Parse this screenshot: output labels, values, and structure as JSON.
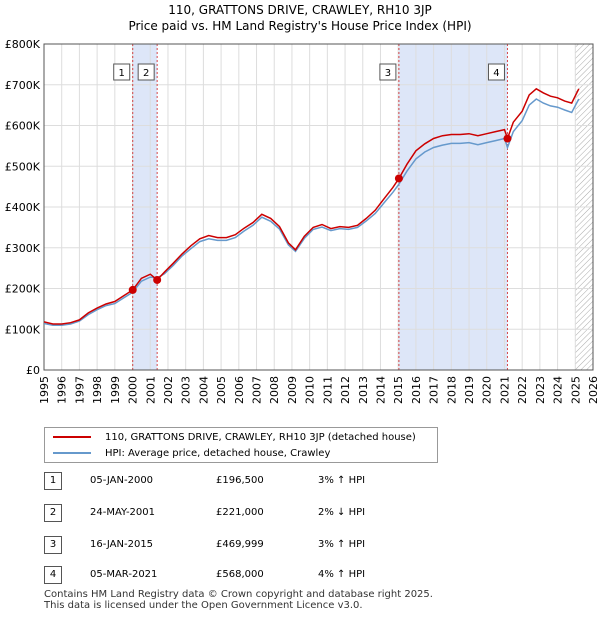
{
  "title": {
    "line1": "110, GRATTONS DRIVE, CRAWLEY, RH10 3JP",
    "line2": "Price paid vs. HM Land Registry's House Price Index (HPI)"
  },
  "colors": {
    "price_line": "#cc0000",
    "hpi_line": "#6699cc",
    "shade": "#dde6f8",
    "marker": "#cc0000"
  },
  "legend": {
    "price_label": "110, GRATTONS DRIVE, CRAWLEY, RH10 3JP (detached house)",
    "hpi_label": "HPI: Average price, detached house, Crawley"
  },
  "sales": [
    {
      "num": "1",
      "date": "05-JAN-2000",
      "price": "£196,500",
      "hpi": "3% ↑ HPI"
    },
    {
      "num": "2",
      "date": "24-MAY-2001",
      "price": "£221,000",
      "hpi": "2% ↓ HPI"
    },
    {
      "num": "3",
      "date": "16-JAN-2015",
      "price": "£469,999",
      "hpi": "3% ↑ HPI"
    },
    {
      "num": "4",
      "date": "05-MAR-2021",
      "price": "£568,000",
      "hpi": "4% ↑ HPI"
    }
  ],
  "footer": {
    "line1": "Contains HM Land Registry data © Crown copyright and database right 2025.",
    "line2": "This data is licensed under the Open Government Licence v3.0."
  },
  "chart_data": {
    "type": "line",
    "title": "Price paid vs. HM Land Registry's House Price Index (HPI)",
    "xlabel": "",
    "ylabel": "",
    "xlim": [
      1995,
      2026
    ],
    "ylim": [
      0,
      800000
    ],
    "x_ticks": [
      "1995",
      "1996",
      "1997",
      "1998",
      "1999",
      "2000",
      "2001",
      "2002",
      "2003",
      "2004",
      "2005",
      "2006",
      "2007",
      "2008",
      "2009",
      "2010",
      "2011",
      "2012",
      "2013",
      "2014",
      "2015",
      "2016",
      "2017",
      "2018",
      "2019",
      "2020",
      "2021",
      "2022",
      "2023",
      "2024",
      "2025",
      "2026"
    ],
    "y_ticks": [
      {
        "value": 0,
        "label": "£0"
      },
      {
        "value": 100000,
        "label": "£100K"
      },
      {
        "value": 200000,
        "label": "£200K"
      },
      {
        "value": 300000,
        "label": "£300K"
      },
      {
        "value": 400000,
        "label": "£400K"
      },
      {
        "value": 500000,
        "label": "£500K"
      },
      {
        "value": 600000,
        "label": "£600K"
      },
      {
        "value": 700000,
        "label": "£700K"
      },
      {
        "value": 800000,
        "label": "£800K"
      }
    ],
    "grid": true,
    "shaded_periods": [
      [
        2000.01,
        2001.39
      ],
      [
        2015.04,
        2021.17
      ]
    ],
    "hatched_from": 2025.0,
    "series": [
      {
        "name": "110, GRATTONS DRIVE, CRAWLEY, RH10 3JP (detached house)",
        "x": [
          1995.0,
          1995.5,
          1996.0,
          1996.5,
          1997.0,
          1997.5,
          1998.0,
          1998.5,
          1999.0,
          1999.5,
          2000.01,
          2000.5,
          2001.0,
          2001.39,
          2001.8,
          2002.3,
          2002.8,
          2003.3,
          2003.8,
          2004.3,
          2004.8,
          2005.3,
          2005.8,
          2006.3,
          2006.8,
          2007.3,
          2007.8,
          2008.3,
          2008.8,
          2009.2,
          2009.7,
          2010.2,
          2010.7,
          2011.2,
          2011.7,
          2012.2,
          2012.7,
          2013.2,
          2013.7,
          2014.2,
          2014.7,
          2015.04,
          2015.5,
          2016.0,
          2016.5,
          2017.0,
          2017.5,
          2018.0,
          2018.5,
          2019.0,
          2019.5,
          2020.0,
          2020.5,
          2021.0,
          2021.17,
          2021.5,
          2022.0,
          2022.4,
          2022.8,
          2023.2,
          2023.6,
          2024.0,
          2024.4,
          2024.8,
          2025.2
        ],
        "y": [
          118000,
          113000,
          113000,
          116000,
          123000,
          140000,
          152000,
          162000,
          168000,
          182000,
          196500,
          225000,
          235000,
          221000,
          240000,
          262000,
          285000,
          305000,
          322000,
          330000,
          325000,
          325000,
          332000,
          348000,
          362000,
          382000,
          372000,
          352000,
          312000,
          295000,
          328000,
          350000,
          357000,
          347000,
          352000,
          350000,
          355000,
          372000,
          392000,
          420000,
          448000,
          469999,
          505000,
          538000,
          555000,
          568000,
          575000,
          578000,
          578000,
          580000,
          575000,
          580000,
          585000,
          590000,
          568000,
          608000,
          635000,
          675000,
          690000,
          680000,
          672000,
          668000,
          660000,
          655000,
          690000
        ]
      },
      {
        "name": "HPI: Average price, detached house, Crawley",
        "x": [
          1995.0,
          1995.5,
          1996.0,
          1996.5,
          1997.0,
          1997.5,
          1998.0,
          1998.5,
          1999.0,
          1999.5,
          2000.01,
          2000.5,
          2001.0,
          2001.39,
          2001.8,
          2002.3,
          2002.8,
          2003.3,
          2003.8,
          2004.3,
          2004.8,
          2005.3,
          2005.8,
          2006.3,
          2006.8,
          2007.3,
          2007.8,
          2008.3,
          2008.8,
          2009.2,
          2009.7,
          2010.2,
          2010.7,
          2011.2,
          2011.7,
          2012.2,
          2012.7,
          2013.2,
          2013.7,
          2014.2,
          2014.7,
          2015.04,
          2015.5,
          2016.0,
          2016.5,
          2017.0,
          2017.5,
          2018.0,
          2018.5,
          2019.0,
          2019.5,
          2020.0,
          2020.5,
          2021.0,
          2021.17,
          2021.5,
          2022.0,
          2022.4,
          2022.8,
          2023.2,
          2023.6,
          2024.0,
          2024.4,
          2024.8,
          2025.2
        ],
        "y": [
          114000,
          110000,
          110000,
          113000,
          120000,
          136000,
          148000,
          158000,
          163000,
          177000,
          191000,
          218000,
          228000,
          226000,
          236000,
          257000,
          280000,
          298000,
          315000,
          322000,
          318000,
          318000,
          325000,
          341000,
          355000,
          375000,
          365000,
          346000,
          307000,
          291000,
          323000,
          345000,
          351000,
          342000,
          347000,
          345000,
          350000,
          366000,
          384000,
          410000,
          436000,
          456000,
          488000,
          518000,
          535000,
          546000,
          552000,
          556000,
          556000,
          558000,
          553000,
          558000,
          563000,
          568000,
          546000,
          585000,
          612000,
          650000,
          665000,
          655000,
          648000,
          645000,
          638000,
          632000,
          665000
        ]
      }
    ],
    "markers": [
      {
        "label": "1",
        "x": 2000.01,
        "y": 196500
      },
      {
        "label": "2",
        "x": 2001.39,
        "y": 221000
      },
      {
        "label": "3",
        "x": 2015.04,
        "y": 469999
      },
      {
        "label": "4",
        "x": 2021.17,
        "y": 568000
      }
    ]
  }
}
